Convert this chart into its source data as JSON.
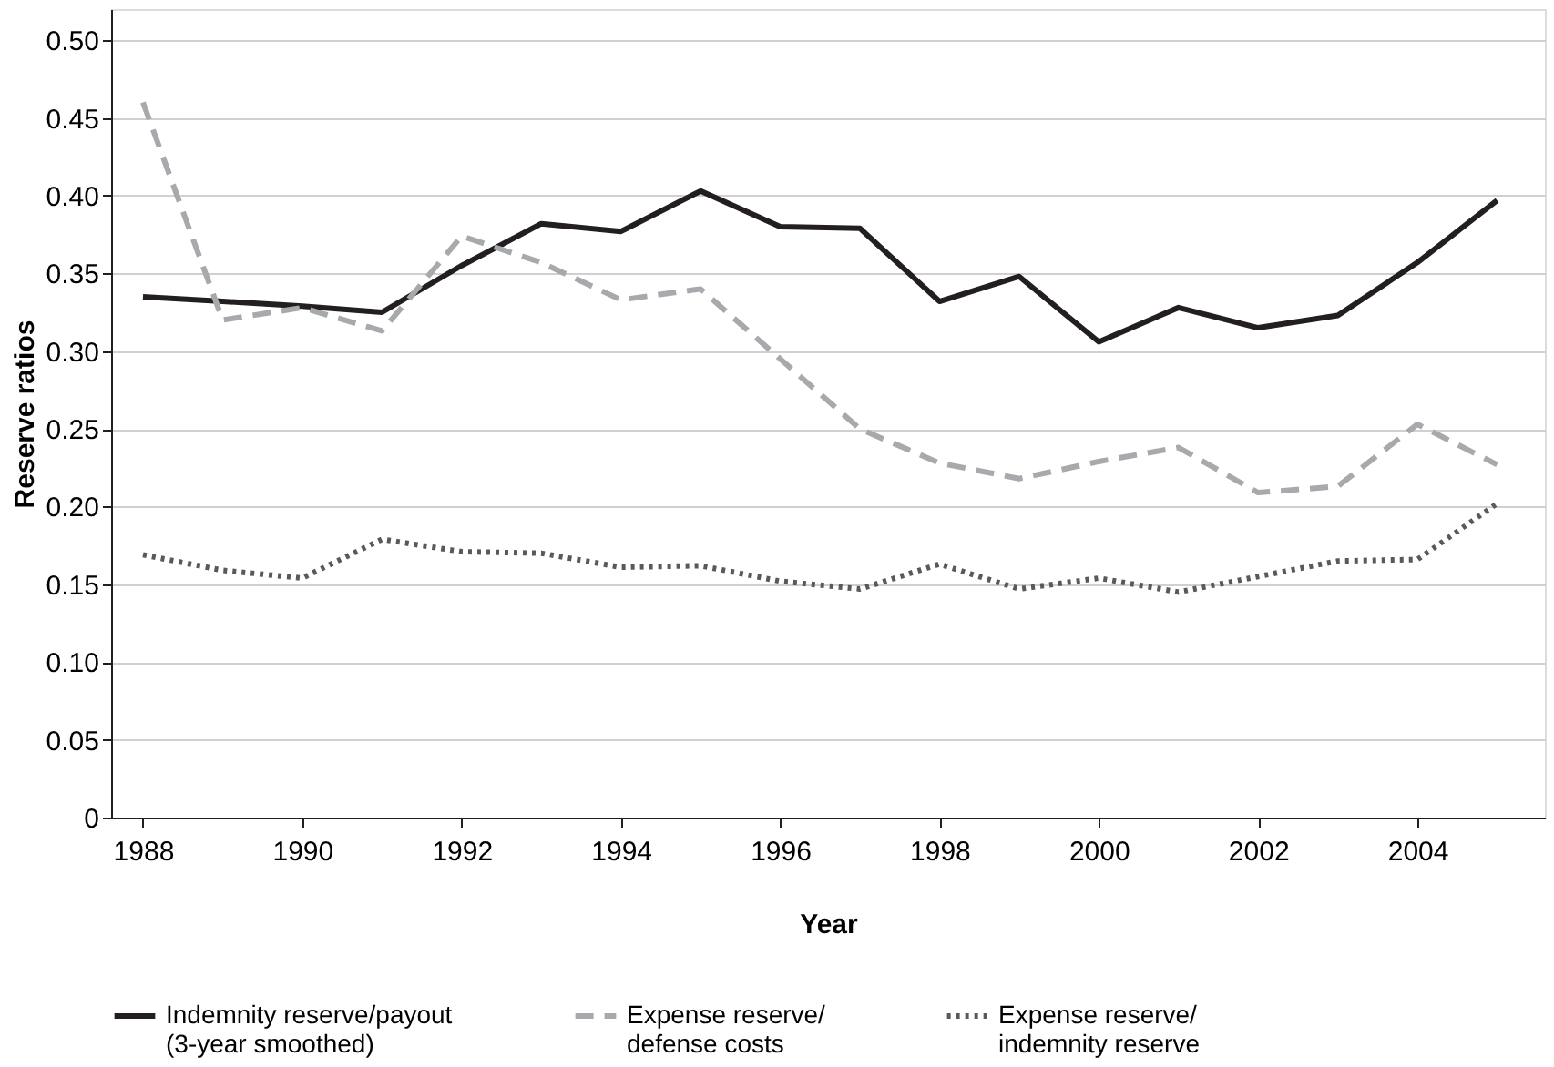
{
  "chart_data": {
    "type": "line",
    "xlabel": "Year",
    "ylabel": "Reserve ratios",
    "x": [
      1988,
      1989,
      1990,
      1991,
      1992,
      1993,
      1994,
      1995,
      1996,
      1997,
      1998,
      1999,
      2000,
      2001,
      2002,
      2003,
      2004,
      2005
    ],
    "series": [
      {
        "name": "Indemnity reserve/payout\n(3-year smoothed)",
        "color": "#231f20",
        "line_style": "solid",
        "values": [
          0.335,
          0.332,
          0.329,
          0.325,
          0.355,
          0.382,
          0.377,
          0.403,
          0.38,
          0.379,
          0.332,
          0.348,
          0.306,
          0.328,
          0.315,
          0.323,
          0.357,
          0.397
        ]
      },
      {
        "name": "Expense reserve/\ndefense costs",
        "color": "#a7a9ac",
        "line_style": "dashed",
        "values": [
          0.46,
          0.32,
          0.328,
          0.313,
          0.374,
          0.357,
          0.333,
          0.34,
          0.295,
          0.25,
          0.228,
          0.218,
          0.229,
          0.238,
          0.209,
          0.213,
          0.253,
          0.227
        ]
      },
      {
        "name": "Expense reserve/\nindemnity reserve",
        "color": "#58595b",
        "line_style": "dotted",
        "values": [
          0.169,
          0.159,
          0.154,
          0.179,
          0.171,
          0.17,
          0.161,
          0.162,
          0.152,
          0.147,
          0.163,
          0.147,
          0.154,
          0.145,
          0.155,
          0.165,
          0.166,
          0.202
        ]
      }
    ],
    "xlim": [
      1987.6,
      2005.6
    ],
    "xticks": [
      1988,
      1990,
      1992,
      1994,
      1996,
      1998,
      2000,
      2002,
      2004
    ],
    "ylim": [
      0,
      0.52
    ],
    "yticks": [
      0,
      {
        "value": 0.05,
        "label": "0.05"
      },
      {
        "value": 0.1,
        "label": "0.10"
      },
      {
        "value": 0.15,
        "label": "0.15"
      },
      {
        "value": 0.2,
        "label": "0.20"
      },
      {
        "value": 0.25,
        "label": "0.25"
      },
      {
        "value": 0.3,
        "label": "0.30"
      },
      {
        "value": 0.35,
        "label": "0.35"
      },
      {
        "value": 0.4,
        "label": "0.40"
      },
      {
        "value": 0.45,
        "label": "0.45"
      },
      {
        "value": 0.5,
        "label": "0.50"
      }
    ],
    "grid": "y",
    "legend": "bottom",
    "marker": "none"
  }
}
